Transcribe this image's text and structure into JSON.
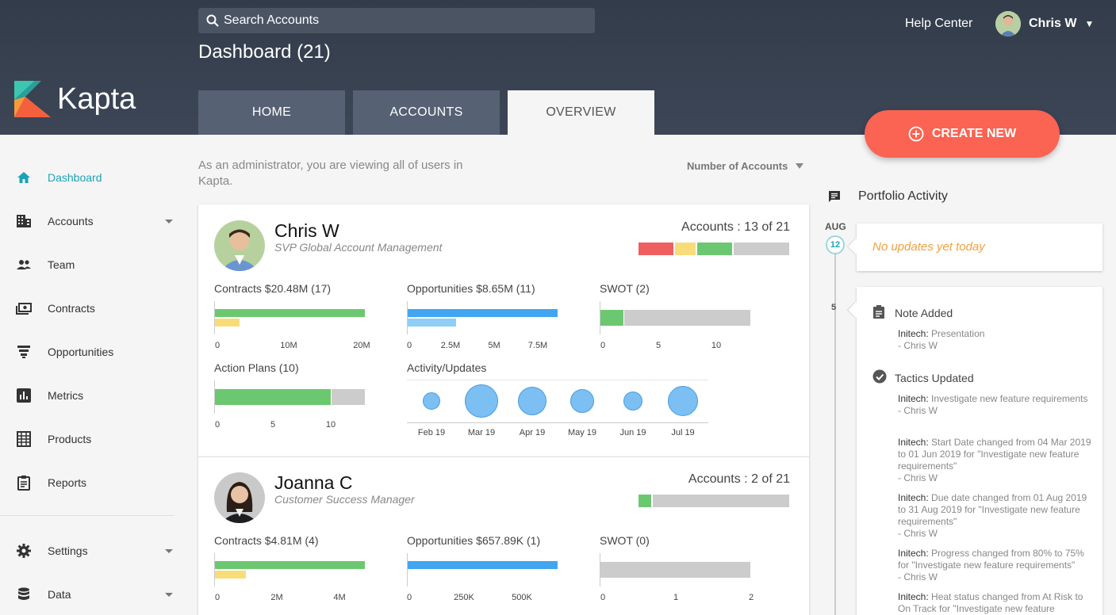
{
  "header": {
    "search_placeholder": "Search Accounts",
    "page_title": "Dashboard (21)",
    "logo_text": "Kapta",
    "help": "Help Center",
    "user_name": "Chris W",
    "tabs": [
      {
        "label": "HOME"
      },
      {
        "label": "ACCOUNTS"
      },
      {
        "label": "OVERVIEW"
      }
    ],
    "create_new": "CREATE NEW"
  },
  "sidebar": {
    "items": [
      {
        "label": "Dashboard",
        "icon": "home-icon"
      },
      {
        "label": "Accounts",
        "icon": "building-icon"
      },
      {
        "label": "Team",
        "icon": "people-icon"
      },
      {
        "label": "Contracts",
        "icon": "money-icon"
      },
      {
        "label": "Opportunities",
        "icon": "funnel-icon"
      },
      {
        "label": "Metrics",
        "icon": "chart-icon"
      },
      {
        "label": "Products",
        "icon": "grid-icon"
      },
      {
        "label": "Reports",
        "icon": "clipboard-icon"
      },
      {
        "label": "Settings",
        "icon": "gear-icon"
      },
      {
        "label": "Data",
        "icon": "database-icon"
      }
    ]
  },
  "main": {
    "admin_note": "As an administrator, you are viewing all of users in Kapta.",
    "sort_label": "Number of Accounts",
    "users": [
      {
        "name": "Chris W",
        "role": "SVP Global Account Management",
        "accounts": "Accounts : 13 of 21",
        "contracts_title": "Contracts $20.48M (17)",
        "contracts_ticks": [
          "0",
          "10M",
          "20M"
        ],
        "opps_title": "Opportunities $8.65M (11)",
        "opps_ticks": [
          "0",
          "2.5M",
          "5M",
          "7.5M"
        ],
        "swot_title": "SWOT (2)",
        "swot_ticks": [
          "0",
          "5",
          "10"
        ],
        "action_title": "Action Plans (10)",
        "action_ticks": [
          "0",
          "5",
          "10"
        ],
        "activity_title": "Activity/Updates",
        "activity_months": [
          "Feb 19",
          "Mar 19",
          "Apr 19",
          "May 19",
          "Jun 19",
          "Jul 19"
        ]
      },
      {
        "name": "Joanna C",
        "role": "Customer Success Manager",
        "accounts": "Accounts : 2 of 21",
        "contracts_title": "Contracts $4.81M (4)",
        "contracts_ticks": [
          "0",
          "2M",
          "4M"
        ],
        "opps_title": "Opportunities $657.89K (1)",
        "opps_ticks": [
          "0",
          "250K",
          "500K"
        ],
        "swot_title": "SWOT (0)",
        "swot_ticks": [
          "0",
          "1",
          "2"
        ]
      }
    ]
  },
  "portfolio": {
    "title": "Portfolio Activity",
    "month": "AUG",
    "day_12": "12",
    "day_5": "5",
    "no_updates": "No updates yet today",
    "note_head": "Note Added",
    "note_entry": {
      "company": "Initech:",
      "text": "Presentation",
      "by": "- Chris W"
    },
    "tactics_head": "Tactics Updated",
    "tactics": [
      {
        "company": "Initech:",
        "text": "Investigate new feature requirements",
        "by": "- Chris W"
      },
      {
        "company": "Initech:",
        "text": "Start Date changed from 04 Mar 2019 to 01 Jun 2019 for \"Investigate new feature requirements\"",
        "by": "- Chris W"
      },
      {
        "company": "Initech:",
        "text": "Due date changed from 01 Aug 2019 to 31 Aug 2019 for \"Investigate new feature requirements\"",
        "by": "- Chris W"
      },
      {
        "company": "Initech:",
        "text": "Progress changed from 80% to 75% for \"Investigate new feature requirements\"",
        "by": "- Chris W"
      },
      {
        "company": "Initech:",
        "text": "Heat status changed from At Risk to On Track for \"Investigate new feature",
        "by": ""
      }
    ]
  },
  "colors": {
    "accent": "#1aa3b8",
    "create": "#fb6352",
    "green": "#6cc870",
    "yellow": "#f9dc7a",
    "red": "#ef5f5f",
    "blue": "#42a5f0",
    "light_blue": "#90cdf7",
    "grey": "#cccccc"
  }
}
